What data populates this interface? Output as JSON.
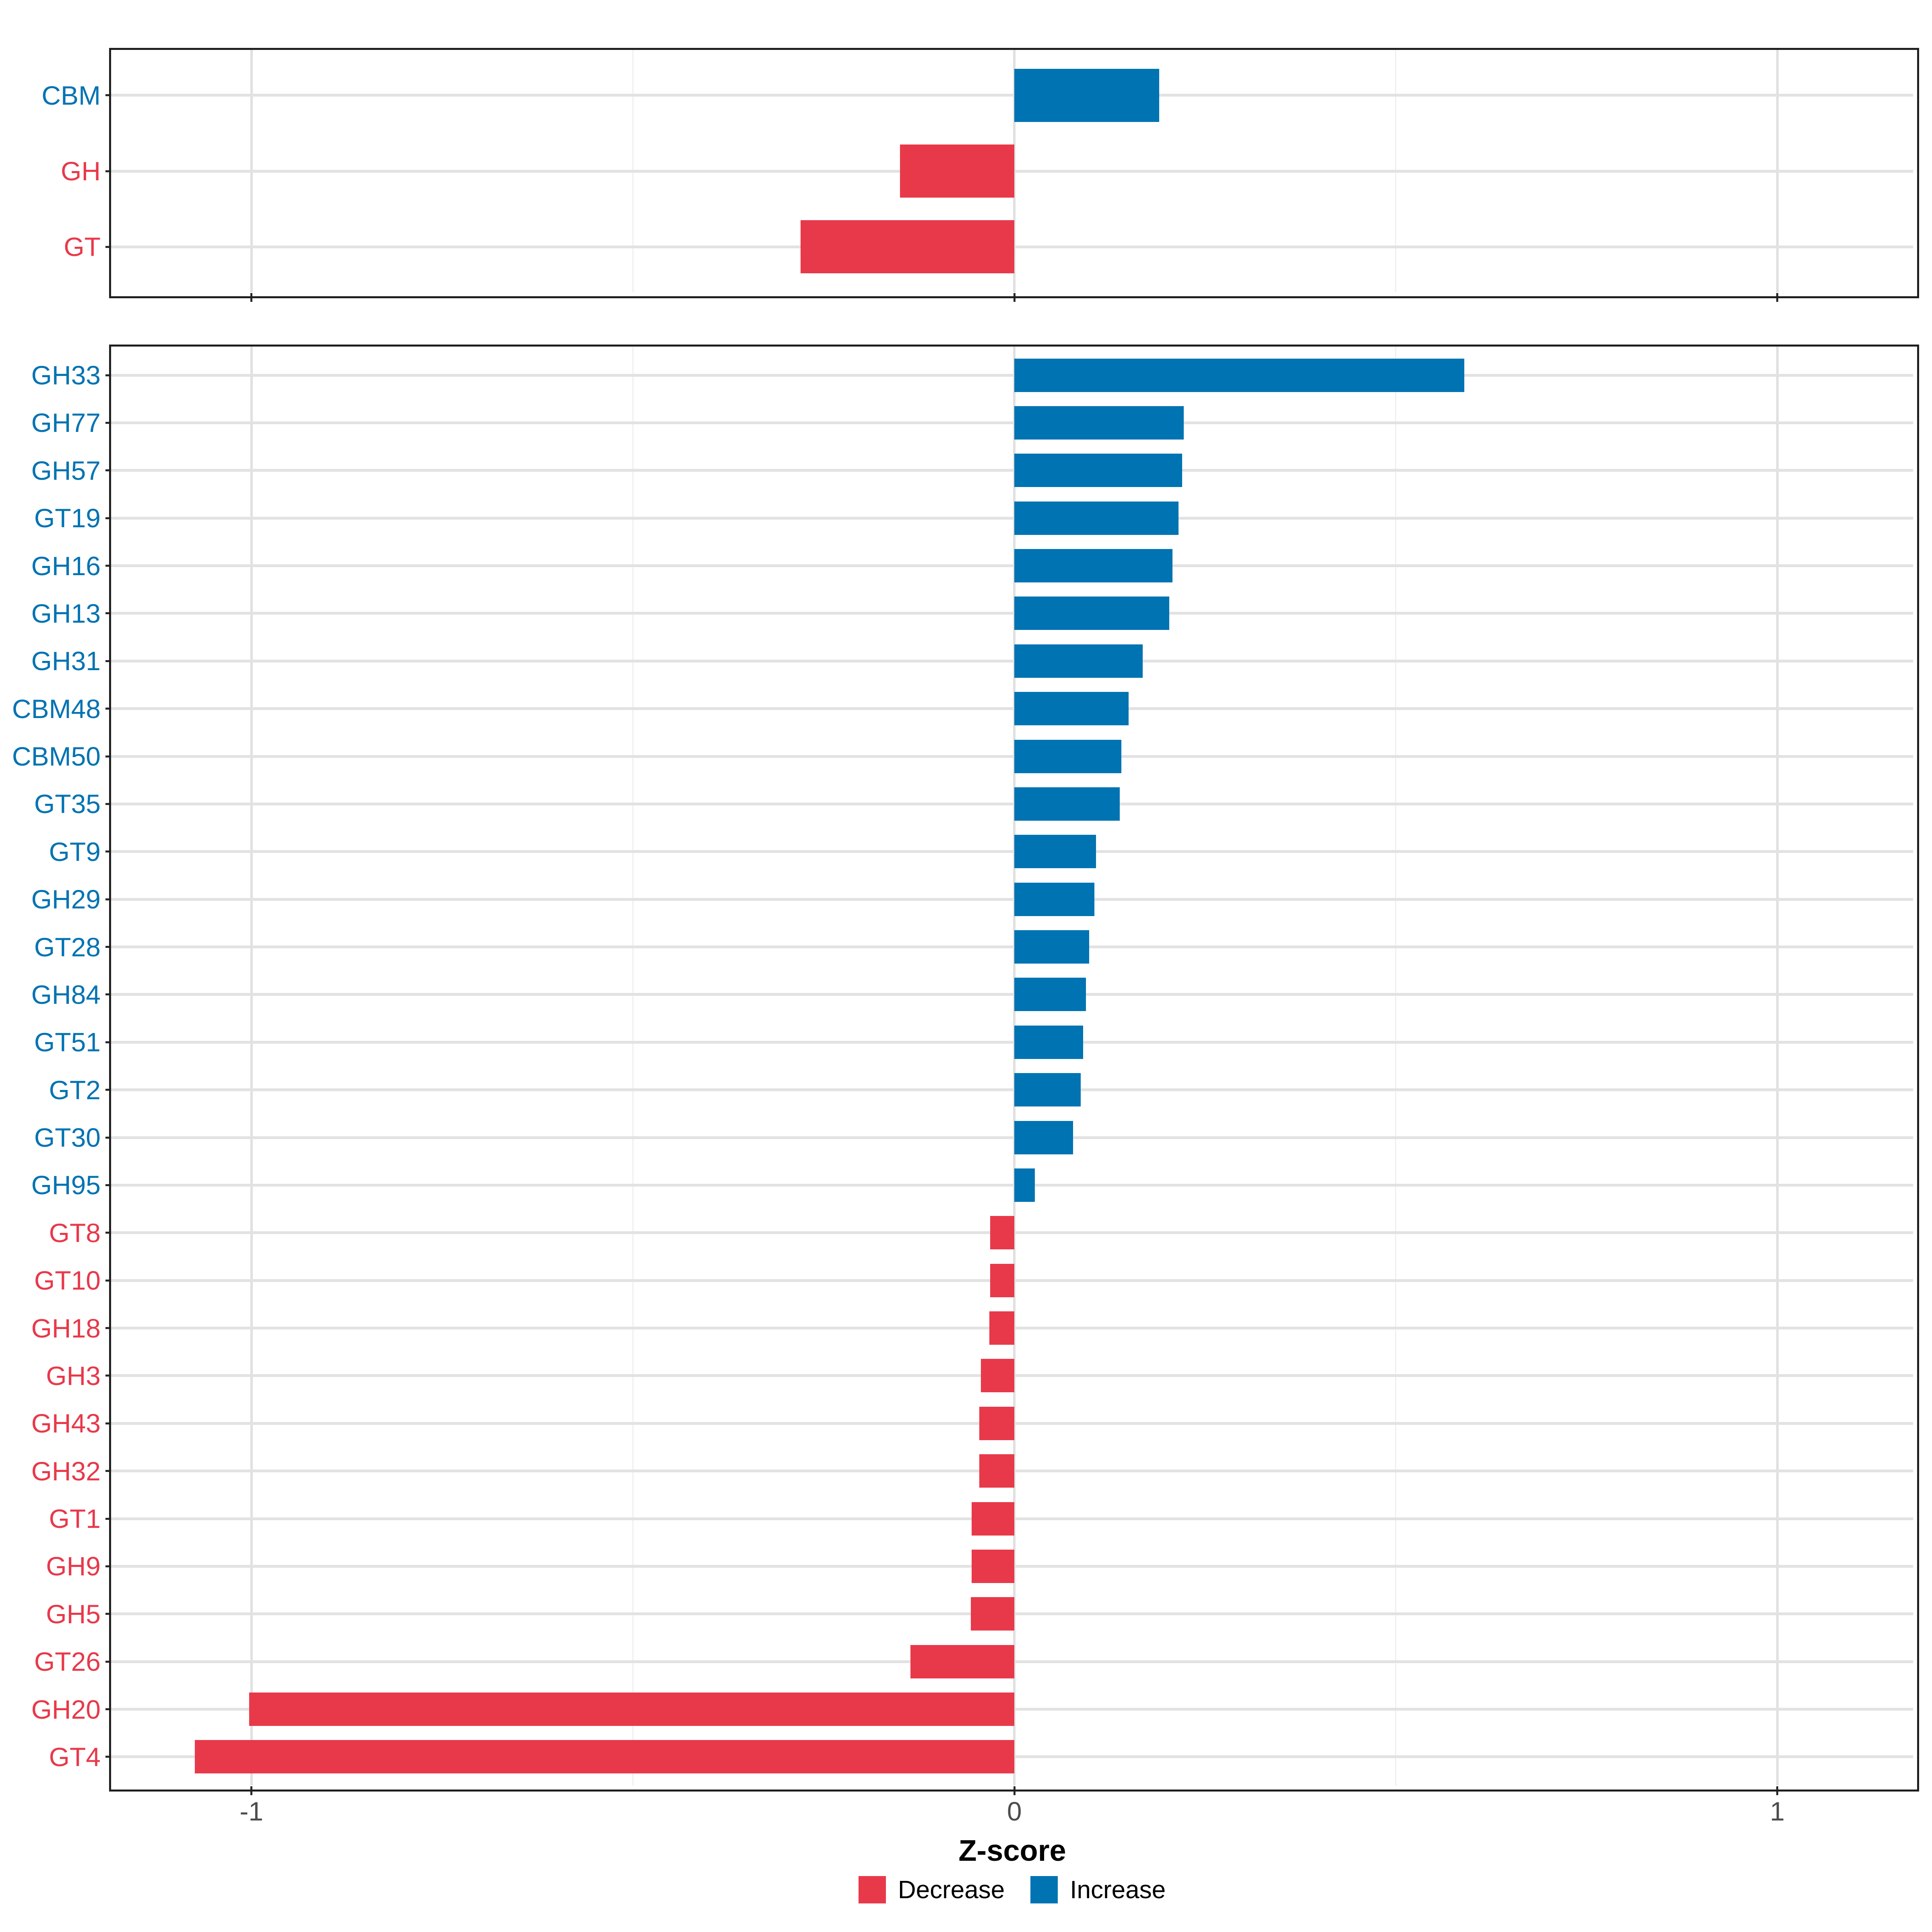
{
  "figure": {
    "background": "#ffffff"
  },
  "axis": {
    "title": "Z-score",
    "range": [
      -1.184,
      1.178
    ],
    "tick_values": [
      -1,
      0,
      1
    ],
    "tick_labels": [
      "-1",
      "0",
      "1"
    ],
    "minor_tick_values": [
      -0.5,
      0.5
    ],
    "tick_label_color": "#4d4d4d"
  },
  "legend": {
    "items": [
      {
        "label": "Decrease",
        "color": "#e8394a"
      },
      {
        "label": "Increase",
        "color": "#0073b2"
      }
    ]
  },
  "colors": {
    "increase": "#0073b2",
    "decrease": "#e8394a",
    "grid": "#e2e2e2",
    "grid_minor": "#f0f0f0",
    "panel_border": "#1f1f1f",
    "tick": "#2a2a2a"
  },
  "chart_data": [
    {
      "type": "bar",
      "panel": "summary",
      "orientation": "horizontal",
      "title": "",
      "xlabel": "Z-score",
      "ylabel": "",
      "xlim": [
        -1.184,
        1.178
      ],
      "grid": true,
      "categories": [
        "CBM",
        "GH",
        "GT"
      ],
      "values": [
        0.19,
        -0.15,
        -0.28
      ],
      "directions": [
        "Increase",
        "Decrease",
        "Decrease"
      ]
    },
    {
      "type": "bar",
      "panel": "families",
      "orientation": "horizontal",
      "title": "",
      "xlabel": "Z-score",
      "ylabel": "",
      "xlim": [
        -1.184,
        1.178
      ],
      "grid": true,
      "categories": [
        "GH33",
        "GH77",
        "GH57",
        "GT19",
        "GH16",
        "GH13",
        "GH31",
        "CBM48",
        "CBM50",
        "GT35",
        "GT9",
        "GH29",
        "GT28",
        "GH84",
        "GT51",
        "GT2",
        "GT30",
        "GH95",
        "GT8",
        "GT10",
        "GH18",
        "GH3",
        "GH43",
        "GH32",
        "GT1",
        "GH9",
        "GH5",
        "GT26",
        "GH20",
        "GT4"
      ],
      "values": [
        0.59,
        0.222,
        0.22,
        0.215,
        0.207,
        0.203,
        0.168,
        0.15,
        0.14,
        0.138,
        0.107,
        0.105,
        0.098,
        0.094,
        0.09,
        0.087,
        0.077,
        0.027,
        -0.032,
        -0.032,
        -0.033,
        -0.044,
        -0.046,
        -0.046,
        -0.056,
        -0.056,
        -0.057,
        -0.136,
        -1.003,
        -1.074
      ],
      "directions": [
        "Increase",
        "Increase",
        "Increase",
        "Increase",
        "Increase",
        "Increase",
        "Increase",
        "Increase",
        "Increase",
        "Increase",
        "Increase",
        "Increase",
        "Increase",
        "Increase",
        "Increase",
        "Increase",
        "Increase",
        "Increase",
        "Decrease",
        "Decrease",
        "Decrease",
        "Decrease",
        "Decrease",
        "Decrease",
        "Decrease",
        "Decrease",
        "Decrease",
        "Decrease",
        "Decrease",
        "Decrease"
      ]
    }
  ]
}
